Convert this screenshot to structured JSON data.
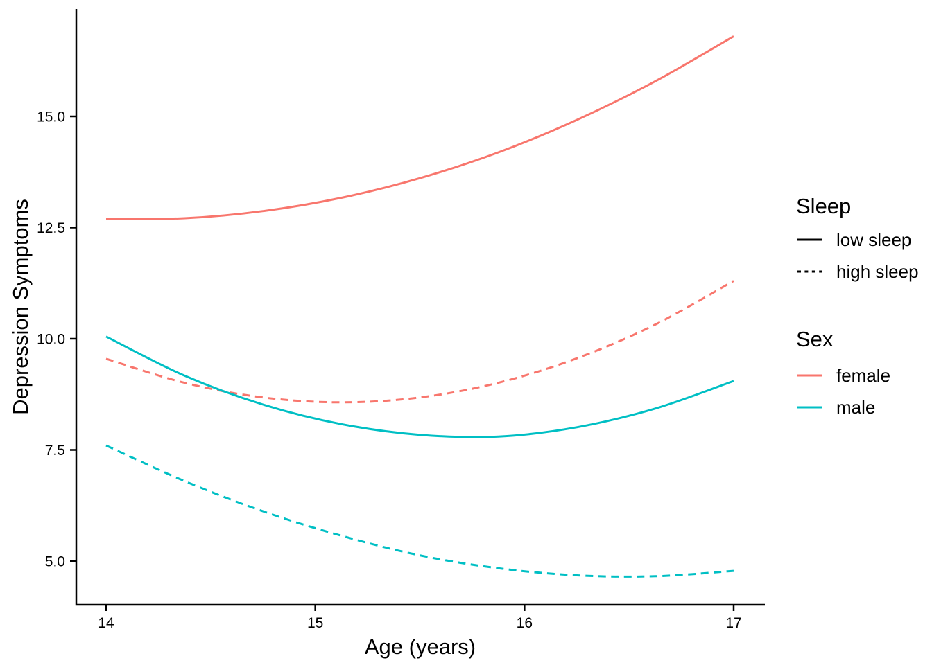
{
  "colors": {
    "female": "#F8766D",
    "male": "#00BFC4",
    "axis": "#000000",
    "text": "#000000",
    "background": "#FFFFFF"
  },
  "legend": {
    "sleep": {
      "title": "Sleep",
      "items": [
        {
          "label": "low sleep",
          "linestyle": "solid"
        },
        {
          "label": "high sleep",
          "linestyle": "dashed"
        }
      ]
    },
    "sex": {
      "title": "Sex",
      "items": [
        {
          "label": "female",
          "color": "#F8766D"
        },
        {
          "label": "male",
          "color": "#00BFC4"
        }
      ]
    }
  },
  "chart_data": {
    "type": "line",
    "title": "",
    "xlabel": "Age (years)",
    "ylabel": "Depression Symptoms",
    "xlim": [
      13.86,
      17.16
    ],
    "ylim": [
      4.0,
      17.4
    ],
    "grid": false,
    "legend_position": "right",
    "x_ticks": {
      "values": [
        14,
        15,
        16,
        17
      ],
      "labels": [
        "14",
        "15",
        "16",
        "17"
      ]
    },
    "y_ticks": {
      "values": [
        5.0,
        7.5,
        10.0,
        12.5,
        15.0
      ],
      "labels": [
        "5.0",
        "7.5",
        "10.0",
        "12.5",
        "15.0"
      ]
    },
    "x": [
      14,
      14.375,
      14.75,
      15.125,
      15.5,
      15.875,
      16.25,
      16.625,
      17
    ],
    "series": [
      {
        "name": "female low sleep",
        "sex": "female",
        "sleep": "low sleep",
        "color": "#F8766D",
        "style": "solid",
        "values": [
          12.7,
          12.71,
          12.87,
          13.17,
          13.61,
          14.19,
          14.92,
          15.79,
          16.8
        ]
      },
      {
        "name": "female high sleep",
        "sex": "female",
        "sleep": "high sleep",
        "color": "#F8766D",
        "style": "dashed",
        "values": [
          9.55,
          9.01,
          8.68,
          8.57,
          8.68,
          9.01,
          9.56,
          10.32,
          11.3
        ]
      },
      {
        "name": "male low sleep",
        "sex": "male",
        "sleep": "low sleep",
        "color": "#00BFC4",
        "style": "solid",
        "values": [
          10.05,
          9.17,
          8.52,
          8.08,
          7.84,
          7.8,
          8.01,
          8.43,
          9.05
        ]
      },
      {
        "name": "male high sleep",
        "sex": "male",
        "sleep": "high sleep",
        "color": "#00BFC4",
        "style": "dashed",
        "values": [
          7.6,
          6.8,
          6.12,
          5.57,
          5.13,
          4.84,
          4.68,
          4.66,
          4.78
        ]
      }
    ]
  }
}
